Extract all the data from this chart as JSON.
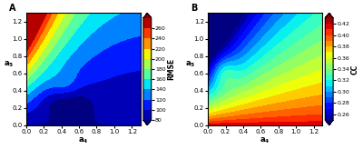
{
  "figsize": [
    4.0,
    1.64
  ],
  "dpi": 100,
  "panel_A": {
    "label": "A",
    "xlabel": "a_4",
    "ylabel": "a_5",
    "colorbar_label": "RMSE",
    "vmin": 80,
    "vmax": 280,
    "levels": [
      80,
      100,
      120,
      140,
      160,
      180,
      200,
      220,
      240,
      260,
      280
    ],
    "cbar_ticks": [
      80,
      100,
      120,
      140,
      160,
      180,
      200,
      220,
      240,
      260
    ],
    "xlim": [
      0,
      1.3
    ],
    "ylim": [
      0,
      1.3
    ],
    "xticks": [
      0,
      0.2,
      0.4,
      0.6,
      0.8,
      1.0,
      1.2
    ],
    "yticks": [
      0,
      0.2,
      0.4,
      0.6,
      0.8,
      1.0,
      1.2
    ]
  },
  "panel_B": {
    "label": "B",
    "xlabel": "a_4",
    "ylabel": "a_5",
    "colorbar_label": "CC",
    "vmin": 0.25,
    "vmax": 0.43,
    "levels": [
      0.25,
      0.26,
      0.27,
      0.28,
      0.29,
      0.3,
      0.31,
      0.32,
      0.33,
      0.34,
      0.35,
      0.36,
      0.37,
      0.38,
      0.39,
      0.4,
      0.41,
      0.42,
      0.43
    ],
    "cbar_ticks": [
      0.26,
      0.28,
      0.3,
      0.32,
      0.34,
      0.36,
      0.38,
      0.4,
      0.42
    ],
    "xlim": [
      0,
      1.3
    ],
    "ylim": [
      0,
      1.3
    ],
    "xticks": [
      0,
      0.2,
      0.4,
      0.6,
      0.8,
      1.0,
      1.2
    ],
    "yticks": [
      0,
      0.2,
      0.4,
      0.6,
      0.8,
      1.0,
      1.2
    ]
  }
}
